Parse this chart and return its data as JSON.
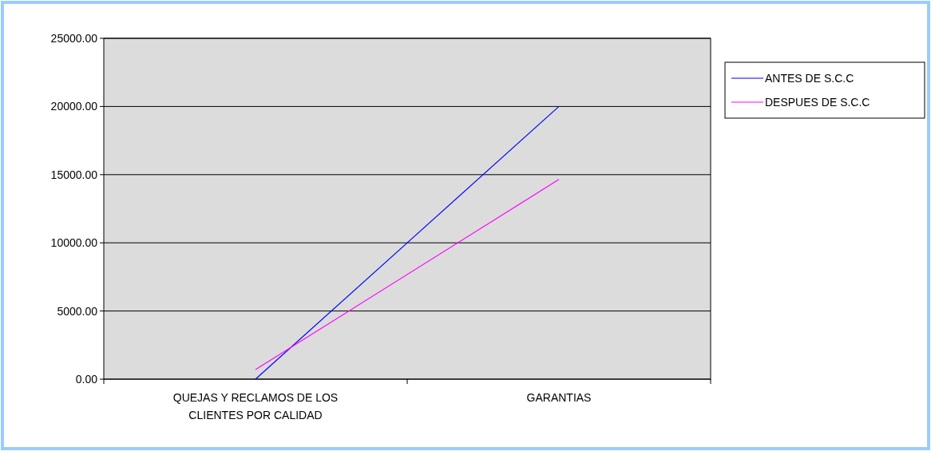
{
  "chart_data": {
    "type": "line",
    "categories": [
      "QUEJAS Y RECLAMOS DE LOS CLIENTES POR CALIDAD",
      "GARANTIAS"
    ],
    "series": [
      {
        "name": "ANTES DE S.C.C",
        "color": "#0000ff",
        "values": [
          0,
          20000
        ]
      },
      {
        "name": "DESPUES DE S.C.C",
        "color": "#ff00ff",
        "values": [
          700,
          14650
        ]
      }
    ],
    "ylim": [
      0,
      25000
    ],
    "yticks": [
      {
        "value": 0,
        "label": "0.00"
      },
      {
        "value": 5000,
        "label": "5000.00"
      },
      {
        "value": 10000,
        "label": "10000.00"
      },
      {
        "value": 15000,
        "label": "15000.00"
      },
      {
        "value": 20000,
        "label": "20000.00"
      },
      {
        "value": 25000,
        "label": "25000.00"
      }
    ],
    "grid": "y",
    "legend": "right",
    "line_style": "solid",
    "marker": "none"
  }
}
